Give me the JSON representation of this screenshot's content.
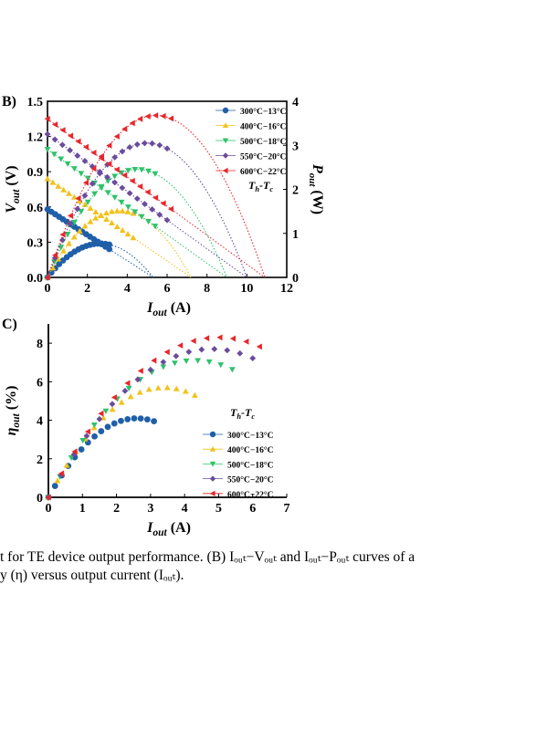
{
  "caption": {
    "line1": "t for TE device output performance. (B) Iₒᵤₜ−Vₒᵤₜ and Iₒᵤₜ−Pₒᵤₜ curves of a",
    "line2": "y (η) versus output current (Iₒᵤₜ)."
  },
  "chart_data": [
    {
      "panel": "B)",
      "type": "line",
      "xlabel": "I_out (A)",
      "ylabel": "V_out (V)",
      "y2label": "P_out (W)",
      "xlim": [
        0,
        12
      ],
      "ylim": [
        0,
        1.5
      ],
      "y2lim": [
        0,
        4
      ],
      "xticks": [
        "0",
        "2",
        "4",
        "6",
        "8",
        "10",
        "12"
      ],
      "yticks": [
        "0.0",
        "0.3",
        "0.6",
        "0.9",
        "1.2",
        "1.5"
      ],
      "y2ticks": [
        "0",
        "1",
        "2",
        "3",
        "4"
      ],
      "legend_title": "T_h-T_c",
      "legend_position": "top-right",
      "series": [
        {
          "name": "300°C−13°C",
          "color": "#1f5fa8",
          "marker": "circle",
          "voc": 0.58,
          "isc": 5.3,
          "i_max_measured": 3.1
        },
        {
          "name": "400°C−16°C",
          "color": "#f2c21b",
          "marker": "triangle-up",
          "voc": 0.84,
          "isc": 7.2,
          "i_max_measured": 4.3
        },
        {
          "name": "500°C−18°C",
          "color": "#2ec26a",
          "marker": "triangle-down",
          "voc": 1.09,
          "isc": 9.0,
          "i_max_measured": 5.4
        },
        {
          "name": "550°C−20°C",
          "color": "#6a4c9c",
          "marker": "diamond",
          "voc": 1.22,
          "isc": 10.0,
          "i_max_measured": 6.0
        },
        {
          "name": "600°C−22°C",
          "color": "#e8262b",
          "marker": "triangle-left",
          "voc": 1.35,
          "isc": 10.9,
          "i_max_measured": 6.2
        }
      ]
    },
    {
      "panel": "C)",
      "type": "scatter",
      "xlabel": "I_out (A)",
      "ylabel": "η_out (%)",
      "xlim": [
        0,
        7
      ],
      "ylim": [
        0,
        9
      ],
      "xticks": [
        "0",
        "1",
        "2",
        "3",
        "4",
        "5",
        "6",
        "7"
      ],
      "yticks": [
        "0",
        "2",
        "4",
        "6",
        "8"
      ],
      "legend_title": "T_h-T_c",
      "legend_position": "center-right",
      "series": [
        {
          "name": "300°C−13°C",
          "color": "#1f5fa8",
          "marker": "circle",
          "peak_eta": 4.1,
          "peak_i": 2.6,
          "i_max": 3.1
        },
        {
          "name": "400°C−16°C",
          "color": "#f2c21b",
          "marker": "triangle-up",
          "peak_eta": 5.7,
          "peak_i": 3.4,
          "i_max": 4.3
        },
        {
          "name": "500°C−18°C",
          "color": "#2ec26a",
          "marker": "triangle-down",
          "peak_eta": 7.1,
          "peak_i": 4.3,
          "i_max": 5.4
        },
        {
          "name": "550°C−20°C",
          "color": "#6a4c9c",
          "marker": "diamond",
          "peak_eta": 7.7,
          "peak_i": 4.8,
          "i_max": 6.0
        },
        {
          "name": "600°C−22°C",
          "color": "#e8262b",
          "marker": "triangle-left",
          "peak_eta": 8.3,
          "peak_i": 5.0,
          "i_max": 6.2
        }
      ]
    }
  ]
}
